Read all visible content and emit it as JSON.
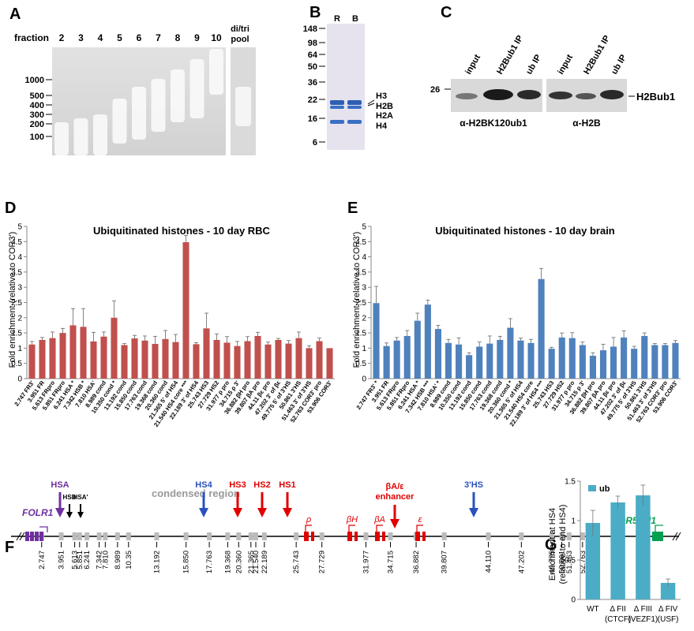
{
  "panels": {
    "a": "A",
    "b": "B",
    "c": "C",
    "d": "D",
    "e": "E",
    "f": "F",
    "g": "G"
  },
  "panel_a": {
    "fraction_label": "fraction",
    "lanes": [
      "2",
      "3",
      "4",
      "5",
      "6",
      "7",
      "8",
      "9",
      "10"
    ],
    "pool_label_1": "di/tri",
    "pool_label_2": "pool",
    "markers": [
      "1000",
      "500",
      "400",
      "300",
      "200",
      "100"
    ]
  },
  "panel_b": {
    "lanes": [
      "R",
      "B"
    ],
    "markers": [
      "148",
      "98",
      "64",
      "50",
      "36",
      "22",
      "16",
      "6"
    ],
    "bands": [
      "H3",
      "H2B",
      "H2A",
      "H4"
    ]
  },
  "panel_c": {
    "marker": "26",
    "lanes": [
      "input",
      "H2Bub1 IP",
      "ub IP",
      "input",
      "H2Bub1 IP",
      "ub IP"
    ],
    "antibody_1": "α-H2BK120ub1",
    "antibody_2": "α-H2B",
    "band_label": "H2Bub1"
  },
  "chart_data": [
    {
      "type": "bar",
      "panel": "D",
      "title": "Ubiquitinated histones - 10 day RBC",
      "ylabel": "Fold enrichment (relative to COR3')",
      "ylim": [
        0,
        5
      ],
      "yticks": [
        "0",
        "0.5",
        "1",
        "1.5",
        "2",
        "2.5",
        "3",
        "3.5",
        "4",
        "4.5",
        "5"
      ],
      "color": "#c0504d",
      "categories": [
        "2.747 FR3'",
        "3.951 FR",
        "5.613 FRpro",
        "5.851 FRpro",
        "6.241 HSA",
        "7.342 HSB",
        "7.810 HSA'",
        "8.989 cond",
        "10.350 cond",
        "13.192 cond",
        "15.850 cond",
        "17.763 cond",
        "19.368 cond",
        "20.360 cond",
        "21.365 5' of HS4",
        "21.540 HS4 core",
        "22.189 3' of HS4",
        "25.743 HS3",
        "27.729 HS2",
        "31.977 ρ pro",
        "34.715 ρ 3'",
        "36.882 βH pro",
        "39.807 βA pro",
        "44.11 βε pro",
        "47.202 3' of βε",
        "49.775 5' of 3'HS",
        "50.861 3'HS",
        "51.463 3' of 3'HS",
        "52.763 COR3' pro",
        "53.906 COR3'"
      ],
      "values": [
        1.12,
        1.27,
        1.33,
        1.5,
        1.75,
        1.7,
        1.22,
        1.38,
        2.0,
        1.1,
        1.32,
        1.25,
        1.14,
        1.3,
        1.2,
        4.48,
        1.13,
        1.65,
        1.27,
        1.18,
        1.07,
        1.23,
        1.4,
        1.12,
        1.27,
        1.15,
        1.33,
        1.0,
        1.23,
        1.0
      ],
      "errors": [
        0.1,
        0.08,
        0.2,
        0.15,
        0.55,
        0.6,
        0.3,
        0.15,
        0.55,
        0.05,
        0.1,
        0.15,
        0.25,
        0.28,
        0.25,
        0.22,
        0.05,
        0.5,
        0.2,
        0.2,
        0.15,
        0.15,
        0.12,
        0.08,
        0.05,
        0.1,
        0.2,
        0.08,
        0.1,
        0.0
      ],
      "markers": [
        "",
        "",
        "",
        "",
        "*",
        "*",
        "",
        "",
        "*",
        "",
        "",
        "",
        "",
        "",
        "",
        "***",
        "",
        "",
        "",
        "",
        "",
        "",
        "",
        "",
        "",
        "",
        "",
        "",
        "",
        ""
      ]
    },
    {
      "type": "bar",
      "panel": "E",
      "title": "Ubiquitinated histones - 10 day brain",
      "ylabel": "Fold enrichment (relative to COR3')",
      "ylim": [
        0,
        5
      ],
      "yticks": [
        "0",
        "0.5",
        "1",
        "1.5",
        "2",
        "2.5",
        "3",
        "3.5",
        "4",
        "4.5",
        "5"
      ],
      "color": "#4f81bd",
      "categories": [
        "2.747 FR3'",
        "3.951 FR",
        "5.613 FRpro",
        "5.851 FRpro",
        "6.241 HSA",
        "7.342 HSB",
        "7.810 HSA'",
        "8.989 cond",
        "10.350 cond",
        "13.192 cond",
        "15.850 cond",
        "17.763 cond",
        "19.368 cond",
        "20.360 cond",
        "21.365 5' of HS4",
        "21.540 HS4 core",
        "22.189 3' of HS4",
        "25.743 HS3",
        "27.729 HS2",
        "31.977 ρ pro",
        "34.715 ρ 3'",
        "36.882 βH pro",
        "39.807 βA pro",
        "44.11 βε pro",
        "47.202 3' of βε",
        "49.775 5' of 3'HS",
        "50.861 3'HS",
        "51.463 3' of 3'HS",
        "52.763 COR3' pro",
        "53.906 COR3'"
      ],
      "values": [
        2.48,
        1.07,
        1.25,
        1.4,
        1.9,
        2.43,
        1.63,
        1.17,
        1.12,
        0.77,
        1.05,
        1.15,
        1.27,
        1.67,
        1.25,
        1.17,
        3.27,
        0.98,
        1.35,
        1.33,
        1.1,
        0.75,
        0.93,
        1.05,
        1.35,
        0.98,
        1.4,
        1.1,
        1.1,
        1.17
      ],
      "errors": [
        0.55,
        0.1,
        0.1,
        0.18,
        0.25,
        0.15,
        0.12,
        0.12,
        0.22,
        0.08,
        0.15,
        0.25,
        0.12,
        0.3,
        0.08,
        0.12,
        0.35,
        0.05,
        0.15,
        0.18,
        0.1,
        0.1,
        0.2,
        0.3,
        0.22,
        0.08,
        0.1,
        0.05,
        0.05,
        0.08
      ],
      "markers": [
        "*",
        "",
        "",
        "",
        "*",
        "***",
        "*",
        "",
        "",
        "",
        "",
        "",
        "",
        "*",
        "",
        "",
        "***",
        "",
        "",
        "",
        "",
        "",
        "",
        "",
        "",
        "",
        "",
        "",
        "",
        ""
      ]
    },
    {
      "type": "bar",
      "panel": "G",
      "legend": "ub",
      "ylabel_1": "Enrichment at HS4",
      "ylabel_2": "(relative to end HS4)",
      "ylim": [
        0,
        1.5
      ],
      "yticks": [
        "0",
        "0.5",
        "1",
        "1.5"
      ],
      "color": "#4bacc6",
      "categories": [
        "WT",
        "Δ FII",
        "Δ FIII",
        "Δ FIV"
      ],
      "sublabels": [
        "",
        "(CTCF)",
        "(VEZF1)",
        "(USF)"
      ],
      "values": [
        0.97,
        1.23,
        1.32,
        0.21
      ],
      "errors": [
        0.16,
        0.08,
        0.13,
        0.05
      ]
    }
  ],
  "panel_f": {
    "gene_left": "FOLR1",
    "gene_right": "OR51M1",
    "condensed": "condensed region",
    "sites": [
      "HSA",
      "HSB",
      "HSA'",
      "HS4",
      "HS3",
      "HS2",
      "HS1",
      "3'HS"
    ],
    "enhancer_1": "βA/ε",
    "enhancer_2": "enhancer",
    "genes": [
      "ρ",
      "βH",
      "βA",
      "ε"
    ],
    "positions": [
      "2.747",
      "3.951",
      "5.613",
      "5.851",
      "6.241",
      "7.342",
      "7.810",
      "8.989",
      "10.35",
      "13.192",
      "15.850",
      "17.763",
      "19.368",
      "20.360",
      "21.365",
      "21.540",
      "22.189",
      "25.743",
      "27.729",
      "31.977",
      "34.715",
      "36.882",
      "39.807",
      "44.110",
      "47.202",
      "49.775",
      "50.861",
      "51.463",
      "52.763",
      "53.906"
    ]
  }
}
